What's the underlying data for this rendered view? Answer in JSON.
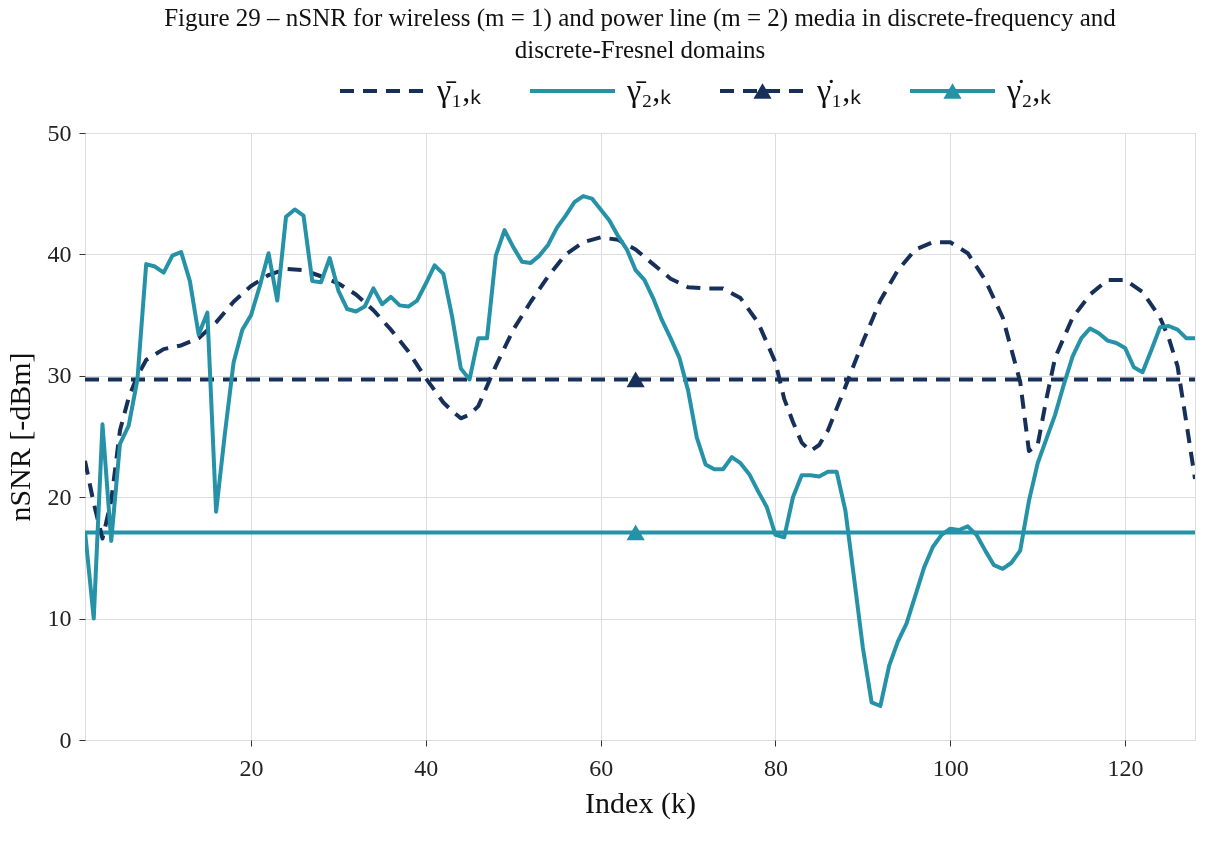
{
  "chart_data": {
    "type": "line",
    "title": "Figure 29 – nSNR for wireless (m = 1) and power line (m = 2) media in discrete-frequency and\ndiscrete-Fresnel domains",
    "xlabel": "Index (k)",
    "ylabel": "nSNR [-dBm]",
    "xlim": [
      1,
      128
    ],
    "ylim": [
      0,
      50
    ],
    "xticks": [
      20,
      40,
      60,
      80,
      100,
      120
    ],
    "yticks": [
      0,
      10,
      20,
      30,
      40,
      50
    ],
    "grid": true,
    "legend": "top",
    "series": [
      {
        "name": "γ̄₁,ₖ",
        "color": "#17305a",
        "line_style": "dashed",
        "x": [
          1,
          2,
          3,
          4,
          5,
          6,
          7,
          8,
          10,
          12,
          14,
          16,
          18,
          20,
          22,
          24,
          26,
          28,
          30,
          32,
          34,
          36,
          38,
          40,
          42,
          43,
          44,
          45,
          46,
          48,
          50,
          52,
          54,
          56,
          58,
          60,
          62,
          64,
          66,
          68,
          70,
          72,
          74,
          76,
          78,
          80,
          81,
          82,
          83,
          84,
          85,
          86,
          88,
          90,
          92,
          94,
          96,
          98,
          100,
          102,
          104,
          106,
          108,
          109,
          110,
          111,
          112,
          114,
          116,
          118,
          120,
          122,
          124,
          125,
          126,
          127,
          128
        ],
        "values": [
          23.0,
          19.5,
          16.6,
          19.7,
          25.5,
          28.2,
          30.0,
          31.3,
          32.2,
          32.5,
          33.1,
          34.4,
          36.1,
          37.4,
          38.3,
          38.8,
          38.7,
          38.2,
          37.6,
          36.7,
          35.4,
          33.8,
          32.0,
          29.8,
          27.8,
          27.1,
          26.5,
          26.8,
          27.5,
          30.8,
          33.8,
          36.1,
          38.2,
          40.0,
          41.0,
          41.4,
          41.2,
          40.4,
          39.2,
          38.0,
          37.3,
          37.2,
          37.2,
          36.4,
          34.4,
          31.1,
          28.1,
          26.2,
          24.5,
          23.8,
          24.3,
          25.5,
          29.1,
          32.8,
          36.2,
          38.7,
          40.4,
          41.0,
          41.0,
          40.1,
          37.9,
          34.8,
          29.5,
          23.8,
          24.3,
          28.1,
          31.5,
          34.8,
          36.7,
          37.9,
          37.9,
          36.9,
          34.8,
          33.1,
          30.8,
          26.2,
          21.5
        ]
      },
      {
        "name": "γ̄₂,ₖ",
        "color": "#2592a8",
        "line_style": "solid",
        "x": [
          1,
          2,
          3,
          4,
          5,
          6,
          7,
          8,
          9,
          10,
          11,
          12,
          13,
          14,
          15,
          16,
          17,
          18,
          19,
          20,
          21,
          22,
          23,
          24,
          25,
          26,
          27,
          28,
          29,
          30,
          31,
          32,
          33,
          34,
          35,
          36,
          37,
          38,
          39,
          40,
          41,
          42,
          43,
          44,
          45,
          46,
          47,
          48,
          49,
          50,
          51,
          52,
          53,
          54,
          55,
          56,
          57,
          58,
          59,
          60,
          61,
          62,
          63,
          64,
          65,
          66,
          67,
          68,
          69,
          70,
          71,
          72,
          73,
          74,
          75,
          76,
          77,
          78,
          79,
          80,
          81,
          82,
          83,
          84,
          85,
          86,
          87,
          88,
          89,
          90,
          91,
          92,
          93,
          94,
          95,
          96,
          97,
          98,
          99,
          100,
          101,
          102,
          103,
          104,
          105,
          106,
          107,
          108,
          109,
          110,
          111,
          112,
          113,
          114,
          115,
          116,
          117,
          118,
          119,
          120,
          121,
          122,
          123,
          124,
          125,
          126,
          127,
          128
        ],
        "values": [
          17.2,
          10.0,
          26.0,
          16.4,
          24.4,
          25.9,
          29.7,
          39.2,
          39.0,
          38.5,
          39.9,
          40.2,
          37.8,
          33.4,
          35.2,
          18.8,
          25.2,
          31.1,
          33.8,
          35.0,
          37.4,
          40.1,
          36.2,
          43.1,
          43.7,
          43.2,
          37.8,
          37.7,
          39.7,
          37.0,
          35.5,
          35.3,
          35.7,
          37.2,
          35.9,
          36.5,
          35.8,
          35.7,
          36.2,
          37.6,
          39.1,
          38.4,
          34.9,
          30.6,
          29.7,
          33.1,
          33.1,
          39.9,
          42.0,
          40.6,
          39.4,
          39.3,
          39.9,
          40.8,
          42.2,
          43.2,
          44.3,
          44.8,
          44.6,
          43.7,
          42.8,
          41.5,
          40.4,
          38.7,
          37.9,
          36.4,
          34.6,
          33.1,
          31.5,
          28.8,
          24.9,
          22.7,
          22.3,
          22.3,
          23.3,
          22.8,
          21.9,
          20.5,
          19.2,
          16.9,
          16.7,
          20.0,
          21.8,
          21.8,
          21.7,
          22.1,
          22.1,
          18.9,
          13.3,
          7.6,
          3.1,
          2.8,
          6.1,
          8.1,
          9.6,
          11.9,
          14.2,
          15.9,
          16.9,
          17.4,
          17.3,
          17.6,
          16.9,
          15.6,
          14.4,
          14.1,
          14.6,
          15.6,
          19.7,
          22.8,
          24.8,
          26.8,
          29.3,
          31.6,
          33.1,
          33.9,
          33.5,
          32.9,
          32.7,
          32.3,
          30.7,
          30.3,
          32.1,
          34.0,
          34.1,
          33.8,
          33.1,
          33.1
        ]
      },
      {
        "name": "γ̇₁,ₖ",
        "type": "scatter",
        "color": "#17305a",
        "line_style": "dashed",
        "marker": "triangle",
        "x": [
          64
        ],
        "values": [
          29.7
        ]
      },
      {
        "name": "γ̇₂,ₖ",
        "type": "scatter",
        "color": "#2592a8",
        "line_style": "solid",
        "marker": "triangle",
        "x": [
          64
        ],
        "values": [
          17.1
        ]
      }
    ],
    "ref_lines": [
      {
        "axis": "y",
        "value": 29.7,
        "color": "#17305a",
        "line_style": "dashed"
      },
      {
        "axis": "y",
        "value": 17.1,
        "color": "#2592a8",
        "line_style": "solid"
      }
    ]
  }
}
